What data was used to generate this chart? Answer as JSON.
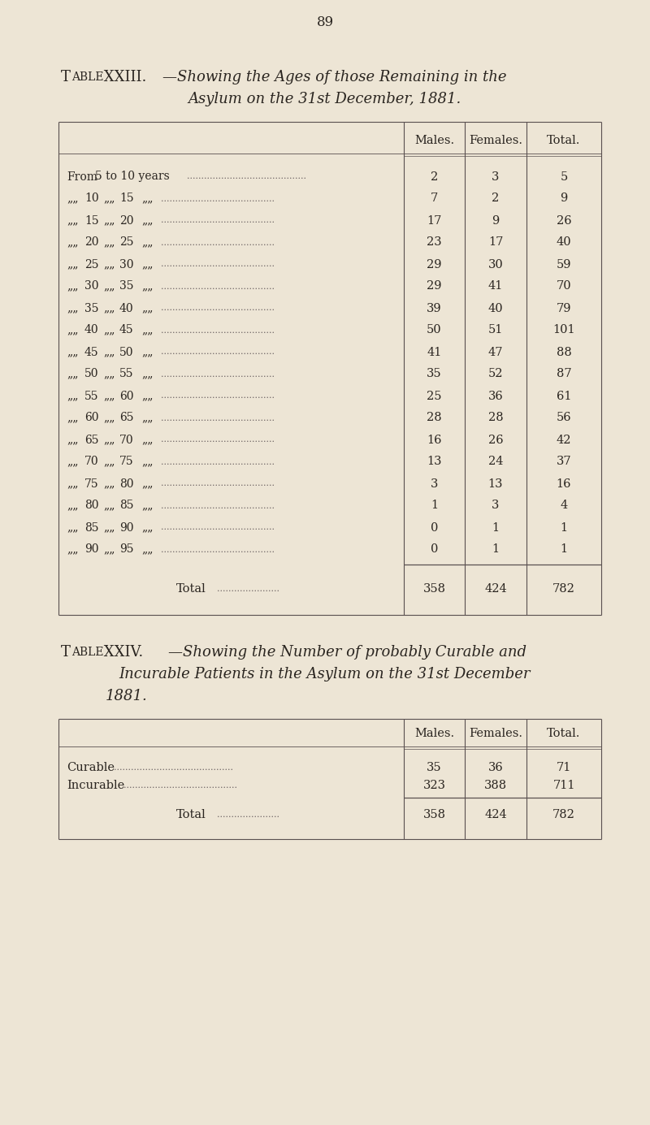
{
  "bg_color": "#ede5d5",
  "page_number": "89",
  "table1_title_line1_normal": "Table XXIII.",
  "table1_title_line1_italic": "—Showing the Ages of those Remaining in the",
  "table1_title_line2": "Asylum on the 31st December, 1881.",
  "table1_col_headers": [
    "Males.",
    "Females.",
    "Total."
  ],
  "table1_row_labels_from": "From  5 to 10 years",
  "table1_row_labels_rest": [
    [
      10,
      15
    ],
    [
      15,
      20
    ],
    [
      20,
      25
    ],
    [
      25,
      30
    ],
    [
      30,
      35
    ],
    [
      35,
      40
    ],
    [
      40,
      45
    ],
    [
      45,
      50
    ],
    [
      50,
      55
    ],
    [
      55,
      60
    ],
    [
      60,
      65
    ],
    [
      65,
      70
    ],
    [
      70,
      75
    ],
    [
      75,
      80
    ],
    [
      80,
      85
    ],
    [
      85,
      90
    ],
    [
      90,
      95
    ]
  ],
  "table1_males": [
    2,
    7,
    17,
    23,
    29,
    29,
    39,
    50,
    41,
    35,
    25,
    28,
    16,
    13,
    3,
    1,
    0,
    0
  ],
  "table1_females": [
    3,
    2,
    9,
    17,
    30,
    41,
    40,
    51,
    47,
    52,
    36,
    28,
    26,
    24,
    13,
    3,
    1,
    1
  ],
  "table1_totals": [
    5,
    9,
    26,
    40,
    59,
    70,
    79,
    101,
    88,
    87,
    61,
    56,
    42,
    37,
    16,
    4,
    1,
    1
  ],
  "table1_total_males": 358,
  "table1_total_females": 424,
  "table1_total_total": 782,
  "table2_title_line1_normal": "Table XXIV.",
  "table2_title_line1_italic": "—Showing the Number of probably Curable and",
  "table2_title_line2": "Incurable Patients in the Asylum on the 31st December",
  "table2_title_line3": "1881.",
  "table2_col_headers": [
    "Males.",
    "Females.",
    "Total."
  ],
  "table2_row_labels": [
    "Curable",
    "Incurable"
  ],
  "table2_males": [
    35,
    323
  ],
  "table2_females": [
    36,
    388
  ],
  "table2_totals": [
    71,
    711
  ],
  "table2_total_males": 358,
  "table2_total_females": 424,
  "table2_total_total": 782,
  "text_color": "#2a2520",
  "line_color": "#5a5050",
  "dots_color": "#6a6060"
}
